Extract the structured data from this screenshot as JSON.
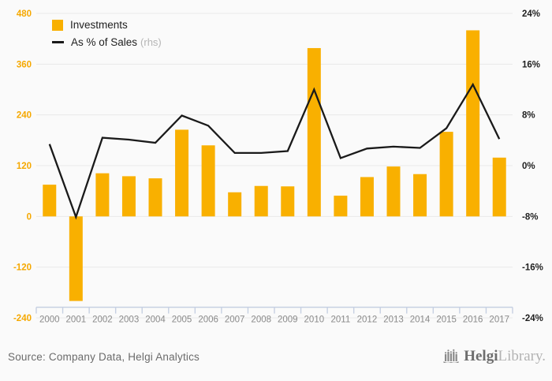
{
  "legend": {
    "investments_label": "Investments",
    "sales_label": "As % of Sales",
    "sales_suffix": "(rhs)"
  },
  "footer": {
    "source_text": "Source: Company Data, Helgi Analytics",
    "logo_bold": "Helgi",
    "logo_light": "Library."
  },
  "colors": {
    "bar": "#F9B000",
    "line": "#1A1A1A",
    "grid": "#E9E9E9",
    "axis_line": "#C6D0E2",
    "left_labels": "#F5A800",
    "right_labels": "#1F1F1F",
    "year_labels": "#8A8A8A",
    "background": "#FAFAFA"
  },
  "chart_data": {
    "type": "bar",
    "title": "",
    "categories": [
      "2000",
      "2001",
      "2002",
      "2003",
      "2004",
      "2005",
      "2006",
      "2007",
      "2008",
      "2009",
      "2010",
      "2011",
      "2012",
      "2013",
      "2014",
      "2015",
      "2016",
      "2017"
    ],
    "series": [
      {
        "name": "Investments",
        "type": "bar",
        "axis": "left",
        "values": [
          75,
          -200,
          102,
          95,
          90,
          205,
          168,
          57,
          72,
          71,
          398,
          49,
          93,
          118,
          100,
          200,
          440,
          139
        ]
      },
      {
        "name": "As % of Sales (rhs)",
        "type": "line",
        "axis": "right",
        "values": [
          3.4,
          -8.1,
          4.4,
          4.1,
          3.6,
          7.9,
          6.3,
          2.0,
          2.0,
          2.3,
          12.0,
          1.2,
          2.7,
          3.0,
          2.8,
          5.9,
          12.8,
          4.2
        ]
      }
    ],
    "left_axis": {
      "min": -240,
      "max": 480,
      "step": 120,
      "tick_labels": [
        "480",
        "360",
        "240",
        "120",
        "0",
        "-120",
        "-240"
      ]
    },
    "right_axis": {
      "min": -24,
      "max": 24,
      "step": 8,
      "tick_labels": [
        "24%",
        "16%",
        "8%",
        "0%",
        "-8%",
        "-16%",
        "-24%"
      ]
    },
    "grid": true,
    "legend_position": "top-left"
  }
}
